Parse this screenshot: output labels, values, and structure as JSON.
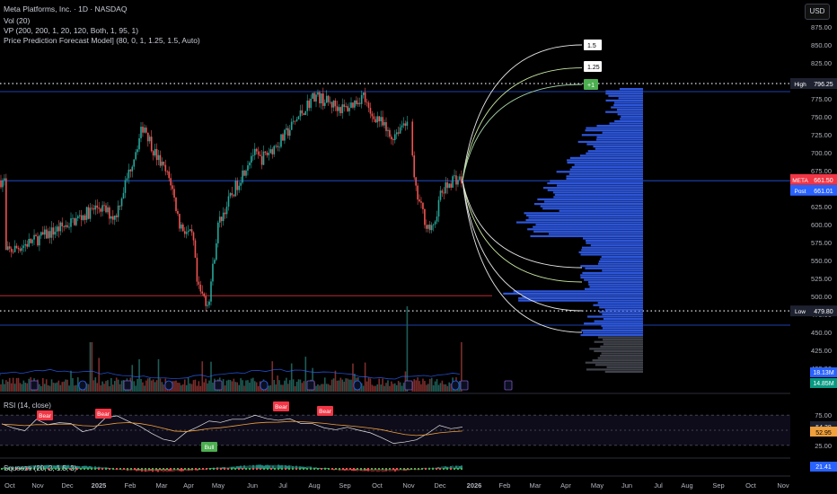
{
  "header": {
    "symbol_line": "Meta Platforms, Inc. · 1D · NASDAQ",
    "vol_line": "Vol (20)",
    "vp_line": "VP (200, 200, 1, 20, 120, Both, 1, 95, 1)",
    "forecast_line": "Price Prediction Forecast Model] (80, 0, 1, 1.25, 1.5, Auto)",
    "currency_button": "USD"
  },
  "panes": {
    "rsi_label": "RSI (14, close)",
    "squeeze_label": "Squeeze (20, 2, 1.5, 2)"
  },
  "colors": {
    "up": "#26a69a",
    "down": "#ef5350",
    "volume_profile": "#2f5be6",
    "rsi_line": "#e6e6e6",
    "rsi_ma": "#f0a03c",
    "bear_tag": "#f23645",
    "bull_tag": "#4caf50",
    "price_tag_meta": "#f23645",
    "price_tag_post": "#2962ff"
  },
  "chart_data": {
    "type": "candlestick",
    "price_axis_ticks": [
      "875.00",
      "850.00",
      "825.00",
      "800.00",
      "775.00",
      "750.00",
      "725.00",
      "700.00",
      "675.00",
      "650.00",
      "625.00",
      "600.00",
      "575.00",
      "550.00",
      "525.00",
      "500.00",
      "475.00",
      "450.00",
      "425.00",
      "400.00"
    ],
    "ylim": [
      395,
      890
    ],
    "time_axis_labels": [
      "Oct",
      "Nov",
      "Dec",
      "2025",
      "Feb",
      "Mar",
      "Apr",
      "May",
      "Jun",
      "Jul",
      "Aug",
      "Sep",
      "Oct",
      "Nov",
      "Dec",
      "2026",
      "Feb",
      "Mar",
      "Apr",
      "May",
      "Jun",
      "Jul",
      "Aug",
      "Sep",
      "Oct",
      "Nov"
    ],
    "price_path": [
      [
        "Oct",
        560
      ],
      [
        "Nov",
        580
      ],
      [
        "Dec",
        600
      ],
      [
        "2025",
        625
      ],
      [
        "Jan mid",
        610
      ],
      [
        "Feb",
        740
      ],
      [
        "Feb late",
        700
      ],
      [
        "Mar",
        660
      ],
      [
        "Mar mid",
        600
      ],
      [
        "Apr",
        580
      ],
      [
        "Apr early",
        510
      ],
      [
        "Apr mid",
        490
      ],
      [
        "May",
        600
      ],
      [
        "May mid",
        620
      ],
      [
        "Jun",
        700
      ],
      [
        "Jun mid",
        690
      ],
      [
        "Jul",
        720
      ],
      [
        "Aug",
        780
      ],
      [
        "Aug mid",
        770
      ],
      [
        "Sep",
        760
      ],
      [
        "Sep mid",
        780
      ],
      [
        "Sep late",
        750
      ],
      [
        "Oct",
        750
      ],
      [
        "Oct mid",
        720
      ],
      [
        "Oct late",
        750
      ],
      [
        "Nov",
        650
      ],
      [
        "Nov mid",
        600
      ],
      [
        "Nov late",
        590
      ],
      [
        "Dec",
        640
      ],
      [
        "Dec mid",
        665
      ],
      [
        "Dec late",
        661
      ]
    ],
    "high_label": "High",
    "high_value": "796.25",
    "low_label": "Low",
    "low_value": "479.80",
    "last_tag_label": "META",
    "last_tag_value": "661.50",
    "post_tag_label": "Post",
    "post_tag_value": "661.01",
    "volume_tag_1": "18.13M",
    "volume_tag_2": "14.85M",
    "forecast_tags": [
      "1.5",
      "1.25",
      "+1"
    ],
    "forecast_targets_upper": [
      850,
      818,
      795
    ],
    "forecast_targets_lower": [
      540,
      520,
      475,
      455
    ],
    "horizontal_lines": [
      {
        "price": 785,
        "color": "#2962ff"
      },
      {
        "price": 661,
        "color": "#2962ff"
      },
      {
        "price": 501,
        "color": "#f23645"
      },
      {
        "price": 460,
        "color": "#2962ff"
      }
    ],
    "dotted_lines": [
      796.25,
      479.8
    ],
    "rsi": {
      "ticks": [
        "75.00",
        "25.00"
      ],
      "last_value": "54.38",
      "ma_value": "52.95",
      "tags": [
        {
          "text": "Bear",
          "date": "Nov"
        },
        {
          "text": "Bear",
          "date": "Dec"
        },
        {
          "text": "Bull",
          "date": "Apr"
        },
        {
          "text": "Bear",
          "date": "Jul"
        },
        {
          "text": "Bear",
          "date": "Aug"
        }
      ],
      "path": [
        60,
        55,
        52,
        66,
        58,
        64,
        60,
        48,
        54,
        68,
        72,
        66,
        55,
        45,
        35,
        30,
        45,
        58,
        64,
        60,
        66,
        70,
        72,
        68,
        64,
        70,
        62,
        58,
        55,
        50,
        52,
        48,
        45,
        40,
        30,
        28,
        35,
        48,
        58,
        54,
        54
      ]
    },
    "squeeze": {
      "last_value": "21.41"
    }
  }
}
